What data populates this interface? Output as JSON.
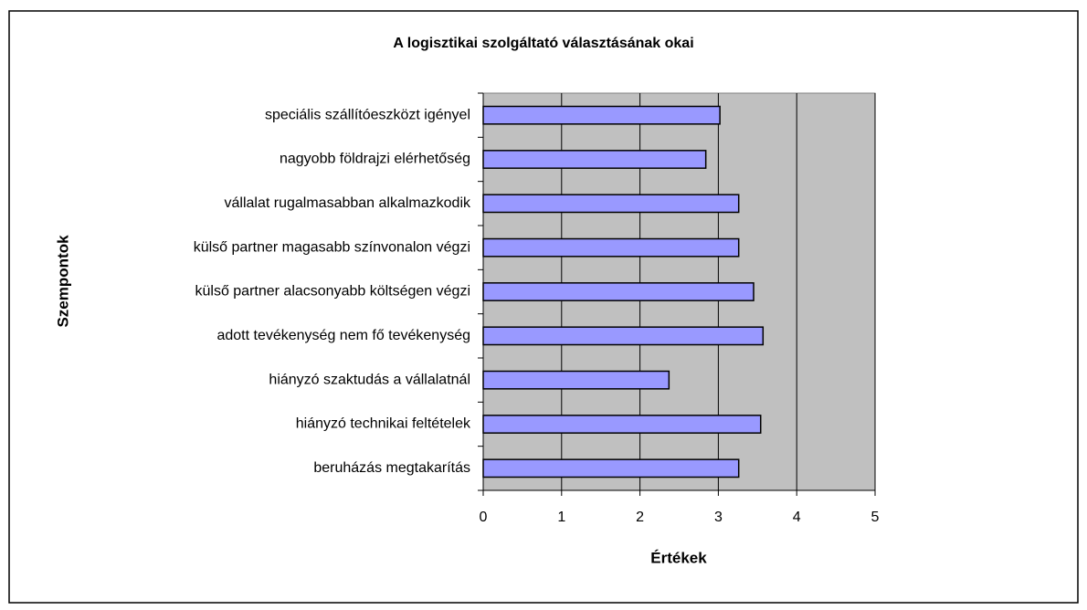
{
  "chart_data": {
    "type": "bar",
    "orientation": "horizontal",
    "title": "A logisztikai szolgáltató választásának okai",
    "x_label": "Értékek",
    "y_label": "Szempontok",
    "categories": [
      "speciális szállítóeszközt igényel",
      "nagyobb földrajzi elérhetőség",
      "vállalat rugalmasabban alkalmazkodik",
      "külső partner magasabb színvonalon végzi",
      "külső partner alacsonyabb költségen végzi",
      "adott tevékenység nem fő tevékenység",
      "hiányzó szaktudás a vállalatnál",
      "hiányzó technikai feltételek",
      "beruházás megtakarítás"
    ],
    "values": [
      3.02,
      2.84,
      3.26,
      3.26,
      3.45,
      3.57,
      2.37,
      3.54,
      3.26
    ],
    "color": "#9999ff",
    "plot_background": "#c0c0c0",
    "xlim": [
      0,
      5
    ],
    "xticks": [
      0,
      1,
      2,
      3,
      4,
      5
    ],
    "grid": true
  }
}
